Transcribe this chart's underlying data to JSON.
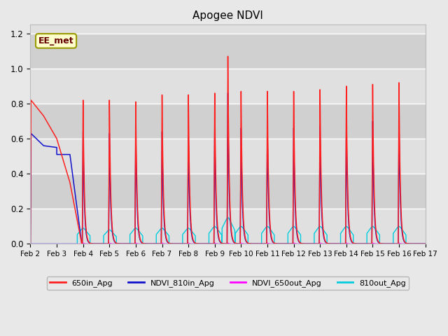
{
  "title": "Apogee NDVI",
  "annotation_text": "EE_met",
  "bg_color": "#e8e8e8",
  "plot_bg_color": "#ebebeb",
  "ylim": [
    0.0,
    1.25
  ],
  "xlim_start": 0,
  "xlim_end": 15,
  "xtick_labels": [
    "Feb 2",
    "Feb 3",
    "Feb 4",
    "Feb 5",
    "Feb 6",
    "Feb 7",
    "Feb 8",
    "Feb 9",
    "Feb 10",
    "Feb 11",
    "Feb 12",
    "Feb 13",
    "Feb 14",
    "Feb 15",
    "Feb 16",
    "Feb 17"
  ],
  "ytick_values": [
    0.0,
    0.2,
    0.4,
    0.6,
    0.8,
    1.0,
    1.2
  ],
  "red_color": "#ff2020",
  "blue_color": "#1010cc",
  "magenta_color": "#ff00ff",
  "cyan_color": "#00ccdd",
  "legend_entries": [
    {
      "label": "650in_Apg",
      "color": "#ff2020"
    },
    {
      "label": "NDVI_810in_Apg",
      "color": "#1010cc"
    },
    {
      "label": "NDVI_650out_Apg",
      "color": "#ff00ff"
    },
    {
      "label": "810out_Apg",
      "color": "#00ccdd"
    }
  ],
  "spike_times": [
    2.0,
    3.0,
    4.0,
    5.0,
    6.0,
    7.0,
    7.5,
    8.0,
    9.0,
    10.0,
    11.0,
    12.0,
    13.0,
    14.0
  ],
  "red_peaks": [
    0.82,
    0.82,
    0.81,
    0.85,
    0.85,
    0.86,
    1.07,
    0.87,
    0.87,
    0.87,
    0.88,
    0.9,
    0.91,
    0.92
  ],
  "blue_peaks": [
    0.64,
    0.63,
    0.63,
    0.64,
    0.62,
    0.65,
    0.86,
    0.66,
    0.66,
    0.66,
    0.67,
    0.69,
    0.7,
    0.7
  ],
  "cyan_peaks": [
    0.09,
    0.08,
    0.09,
    0.09,
    0.09,
    0.1,
    0.15,
    0.1,
    0.1,
    0.1,
    0.1,
    0.1,
    0.1,
    0.1
  ],
  "magenta_peaks": [
    0.005,
    0.005,
    0.005,
    0.005,
    0.005,
    0.005,
    0.005,
    0.005,
    0.005,
    0.005,
    0.005,
    0.005,
    0.005,
    0.005
  ]
}
